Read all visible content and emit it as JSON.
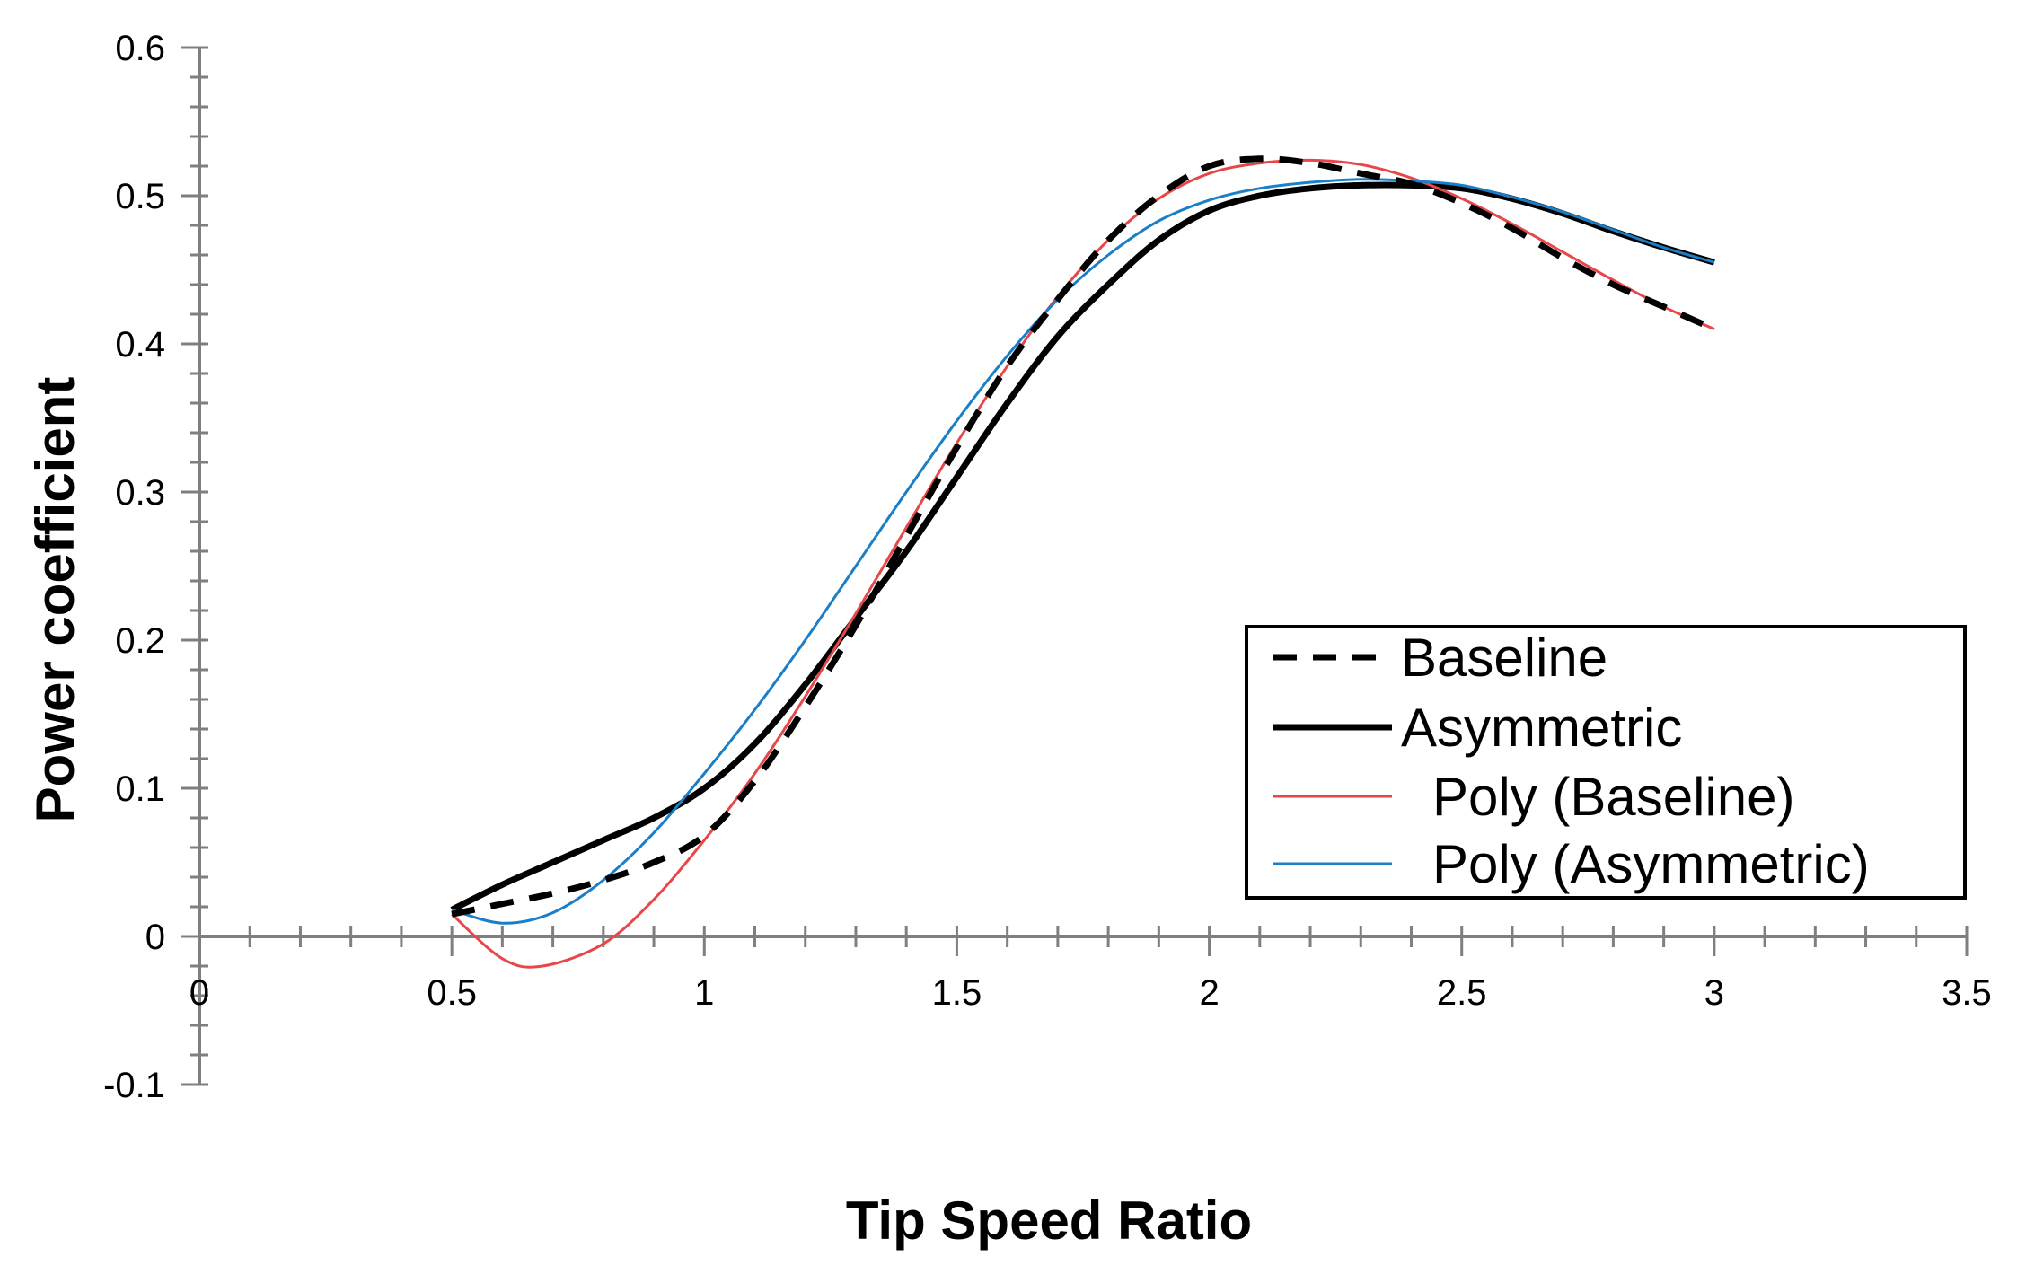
{
  "chart_data": {
    "type": "line",
    "title": "",
    "xlabel": "Tip Speed Ratio",
    "ylabel": "Power coefficient",
    "xlim": [
      0,
      3.5
    ],
    "ylim": [
      -0.1,
      0.6
    ],
    "x_ticks": [
      0,
      0.5,
      1,
      1.5,
      2,
      2.5,
      3,
      3.5
    ],
    "x_tick_labels": [
      "0",
      "0.5",
      "1",
      "1.5",
      "2",
      "2.5",
      "3",
      "3.5"
    ],
    "y_ticks": [
      -0.1,
      0,
      0.1,
      0.2,
      0.3,
      0.4,
      0.5,
      0.6
    ],
    "y_tick_labels": [
      "-0.1",
      "0",
      "0.1",
      "0.2",
      "0.3",
      "0.4",
      "0.5",
      "0.6"
    ],
    "grid": false,
    "legend_position": "lower-right",
    "series": [
      {
        "name": "Baseline",
        "color": "#000000",
        "style": "dashed",
        "x": [
          0.5,
          0.6,
          0.7,
          0.8,
          0.9,
          1.0,
          1.1,
          1.2,
          1.3,
          1.4,
          1.5,
          1.6,
          1.7,
          1.8,
          1.9,
          2.0,
          2.1,
          2.2,
          2.3,
          2.4,
          2.5,
          2.6,
          2.7,
          2.8,
          2.9,
          3.0
        ],
        "y": [
          0.015,
          0.022,
          0.029,
          0.038,
          0.05,
          0.068,
          0.105,
          0.155,
          0.21,
          0.27,
          0.33,
          0.385,
          0.43,
          0.47,
          0.5,
          0.52,
          0.525,
          0.522,
          0.515,
          0.508,
          0.495,
          0.478,
          0.458,
          0.44,
          0.425,
          0.41
        ]
      },
      {
        "name": "Asymmetric",
        "color": "#000000",
        "style": "solid-thick",
        "x": [
          0.5,
          0.6,
          0.7,
          0.8,
          0.9,
          1.0,
          1.1,
          1.2,
          1.3,
          1.4,
          1.5,
          1.6,
          1.7,
          1.8,
          1.9,
          2.0,
          2.1,
          2.2,
          2.3,
          2.4,
          2.5,
          2.6,
          2.7,
          2.8,
          2.9,
          3.0
        ],
        "y": [
          0.018,
          0.035,
          0.05,
          0.065,
          0.08,
          0.1,
          0.13,
          0.17,
          0.215,
          0.26,
          0.31,
          0.36,
          0.405,
          0.44,
          0.47,
          0.49,
          0.5,
          0.505,
          0.507,
          0.507,
          0.505,
          0.498,
          0.488,
          0.476,
          0.465,
          0.455
        ]
      },
      {
        "name": "Poly (Baseline)",
        "color": "#e8474a",
        "style": "solid-thin",
        "x": [
          0.5,
          0.6,
          0.68,
          0.8,
          0.9,
          1.0,
          1.1,
          1.2,
          1.3,
          1.4,
          1.5,
          1.6,
          1.7,
          1.8,
          1.9,
          2.0,
          2.1,
          2.2,
          2.3,
          2.4,
          2.5,
          2.6,
          2.7,
          2.8,
          2.9,
          3.0
        ],
        "y": [
          0.015,
          -0.015,
          -0.02,
          -0.005,
          0.025,
          0.065,
          0.11,
          0.162,
          0.218,
          0.276,
          0.333,
          0.385,
          0.432,
          0.47,
          0.498,
          0.515,
          0.522,
          0.524,
          0.521,
          0.512,
          0.498,
          0.481,
          0.462,
          0.443,
          0.425,
          0.41
        ]
      },
      {
        "name": "Poly (Asymmetric)",
        "color": "#1a7fc6",
        "style": "solid-thin",
        "x": [
          0.5,
          0.6,
          0.7,
          0.8,
          0.9,
          1.0,
          1.1,
          1.2,
          1.3,
          1.4,
          1.5,
          1.6,
          1.7,
          1.8,
          1.9,
          2.0,
          2.1,
          2.2,
          2.3,
          2.4,
          2.5,
          2.6,
          2.7,
          2.8,
          2.9,
          3.0
        ],
        "y": [
          0.018,
          0.009,
          0.016,
          0.038,
          0.07,
          0.11,
          0.153,
          0.2,
          0.25,
          0.3,
          0.348,
          0.392,
          0.43,
          0.46,
          0.483,
          0.497,
          0.505,
          0.509,
          0.511,
          0.51,
          0.507,
          0.499,
          0.489,
          0.477,
          0.465,
          0.455
        ]
      }
    ]
  }
}
